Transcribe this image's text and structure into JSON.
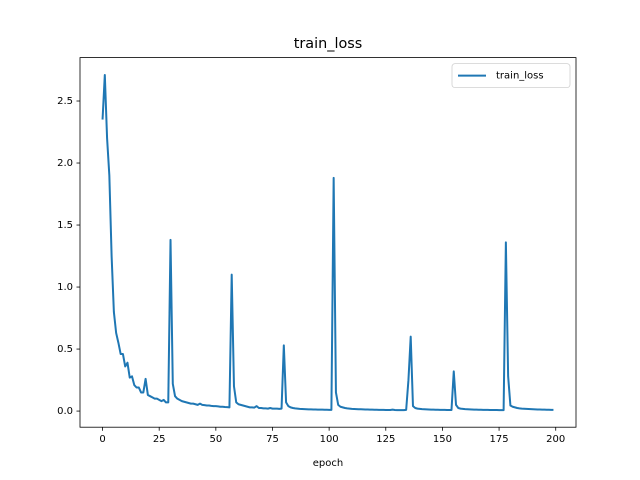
{
  "chart_data": {
    "type": "line",
    "title": "train_loss",
    "xlabel": "epoch",
    "x": [
      0,
      1,
      2,
      3,
      4,
      5,
      6,
      7,
      8,
      9,
      10,
      11,
      12,
      13,
      14,
      15,
      16,
      17,
      18,
      19,
      20,
      21,
      22,
      23,
      24,
      25,
      26,
      27,
      28,
      29,
      30,
      31,
      32,
      33,
      34,
      35,
      36,
      37,
      38,
      39,
      40,
      41,
      42,
      43,
      44,
      45,
      46,
      47,
      48,
      49,
      50,
      51,
      52,
      53,
      54,
      55,
      56,
      57,
      58,
      59,
      60,
      61,
      62,
      63,
      64,
      65,
      66,
      67,
      68,
      69,
      70,
      71,
      72,
      73,
      74,
      75,
      76,
      77,
      78,
      79,
      80,
      81,
      82,
      83,
      84,
      85,
      86,
      87,
      88,
      89,
      90,
      91,
      92,
      93,
      94,
      95,
      96,
      97,
      98,
      99,
      100,
      101,
      102,
      103,
      104,
      105,
      106,
      107,
      108,
      109,
      110,
      111,
      112,
      113,
      114,
      115,
      116,
      117,
      118,
      119,
      120,
      121,
      122,
      123,
      124,
      125,
      126,
      127,
      128,
      129,
      130,
      131,
      132,
      133,
      134,
      135,
      136,
      137,
      138,
      139,
      140,
      141,
      142,
      143,
      144,
      145,
      146,
      147,
      148,
      149,
      150,
      151,
      152,
      153,
      154,
      155,
      156,
      157,
      158,
      159,
      160,
      161,
      162,
      163,
      164,
      165,
      166,
      167,
      168,
      169,
      170,
      171,
      172,
      173,
      174,
      175,
      176,
      177,
      178,
      179,
      180,
      181,
      182,
      183,
      184,
      185,
      186,
      187,
      188,
      189,
      190,
      191,
      192,
      193,
      194,
      195,
      196,
      197,
      198,
      199
    ],
    "series": [
      {
        "name": "train_loss",
        "color": "#1f77b4",
        "values": [
          2.35,
          2.71,
          2.2,
          1.9,
          1.25,
          0.8,
          0.63,
          0.55,
          0.46,
          0.46,
          0.36,
          0.39,
          0.27,
          0.28,
          0.21,
          0.19,
          0.19,
          0.15,
          0.15,
          0.26,
          0.13,
          0.12,
          0.11,
          0.1,
          0.1,
          0.09,
          0.08,
          0.09,
          0.07,
          0.07,
          1.38,
          0.22,
          0.12,
          0.1,
          0.09,
          0.08,
          0.075,
          0.07,
          0.065,
          0.06,
          0.06,
          0.055,
          0.05,
          0.06,
          0.05,
          0.048,
          0.045,
          0.045,
          0.042,
          0.04,
          0.04,
          0.038,
          0.035,
          0.035,
          0.033,
          0.032,
          0.03,
          1.1,
          0.2,
          0.07,
          0.055,
          0.05,
          0.045,
          0.04,
          0.035,
          0.03,
          0.03,
          0.028,
          0.04,
          0.025,
          0.025,
          0.022,
          0.022,
          0.02,
          0.025,
          0.02,
          0.02,
          0.02,
          0.018,
          0.02,
          0.53,
          0.07,
          0.04,
          0.03,
          0.025,
          0.022,
          0.02,
          0.018,
          0.017,
          0.016,
          0.015,
          0.014,
          0.014,
          0.013,
          0.013,
          0.012,
          0.012,
          0.012,
          0.011,
          0.011,
          0.01,
          0.01,
          1.88,
          0.15,
          0.05,
          0.035,
          0.03,
          0.025,
          0.022,
          0.02,
          0.018,
          0.017,
          0.016,
          0.015,
          0.015,
          0.014,
          0.013,
          0.013,
          0.012,
          0.012,
          0.011,
          0.011,
          0.01,
          0.01,
          0.01,
          0.009,
          0.009,
          0.009,
          0.012,
          0.009,
          0.008,
          0.008,
          0.008,
          0.008,
          0.01,
          0.25,
          0.6,
          0.04,
          0.025,
          0.02,
          0.018,
          0.016,
          0.015,
          0.014,
          0.013,
          0.012,
          0.012,
          0.011,
          0.011,
          0.01,
          0.01,
          0.01,
          0.009,
          0.009,
          0.009,
          0.32,
          0.05,
          0.025,
          0.02,
          0.018,
          0.016,
          0.015,
          0.014,
          0.013,
          0.012,
          0.012,
          0.011,
          0.011,
          0.01,
          0.01,
          0.01,
          0.009,
          0.009,
          0.009,
          0.009,
          0.008,
          0.008,
          0.008,
          1.36,
          0.28,
          0.045,
          0.035,
          0.03,
          0.025,
          0.022,
          0.02,
          0.019,
          0.018,
          0.017,
          0.016,
          0.015,
          0.014,
          0.013,
          0.013,
          0.012,
          0.012,
          0.011,
          0.011,
          0.01,
          0.01
        ]
      }
    ],
    "xlim": [
      -9.95,
      208.95
    ],
    "xticks": [
      0,
      25,
      50,
      75,
      100,
      125,
      150,
      175,
      200
    ],
    "ylim": [
      -0.13,
      2.85
    ],
    "yticks": [
      {
        "value": 0,
        "label": "0.0"
      },
      0.5,
      {
        "value": 1,
        "label": "1.0"
      },
      1.5,
      {
        "value": 2,
        "label": "2.0"
      },
      2.5
    ],
    "grid": false,
    "legend": "upper right"
  }
}
